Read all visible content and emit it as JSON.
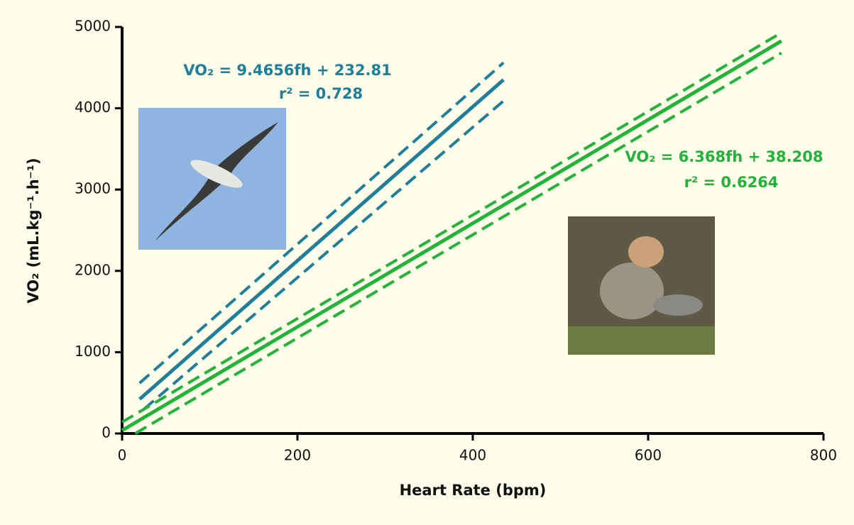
{
  "chart_data": {
    "type": "line",
    "x_label": "Heart Rate (bpm)",
    "y_label": "VO₂ (mL.kg⁻¹.h⁻¹)",
    "xlim": [
      0,
      800
    ],
    "xticks": [
      0,
      200,
      400,
      600,
      800
    ],
    "ylim": [
      0,
      5000
    ],
    "yticks": [
      0,
      1000,
      2000,
      3000,
      4000,
      5000
    ],
    "series": [
      {
        "color": "#1f7f9b",
        "style": "solid",
        "x": [
          20,
          435
        ],
        "values": [
          422,
          4350
        ]
      },
      {
        "color": "#1f7f9b",
        "style": "dashed",
        "x": [
          20,
          435
        ],
        "values": [
          620,
          4560
        ]
      },
      {
        "color": "#1f7f9b",
        "style": "dashed",
        "x": [
          25,
          435
        ],
        "values": [
          300,
          4090
        ]
      },
      {
        "color": "#22b33a",
        "style": "solid",
        "x": [
          0,
          752
        ],
        "values": [
          38,
          4827
        ]
      },
      {
        "color": "#22b33a",
        "style": "dashed",
        "x": [
          0,
          752
        ],
        "values": [
          140,
          4930
        ]
      },
      {
        "color": "#22b33a",
        "style": "dashed",
        "x": [
          15,
          752
        ],
        "values": [
          0,
          4680
        ]
      }
    ],
    "annotations": [
      {
        "text": "VO₂ = 9.4656fh + 232.81",
        "color": "#1f7f9b"
      },
      {
        "text": "r² = 0.728",
        "color": "#1f7f9b"
      },
      {
        "text": "VO₂ = 6.368fh + 38.208",
        "color": "#22b33a"
      },
      {
        "text": "r² = 0.6264",
        "color": "#22b33a"
      }
    ]
  }
}
